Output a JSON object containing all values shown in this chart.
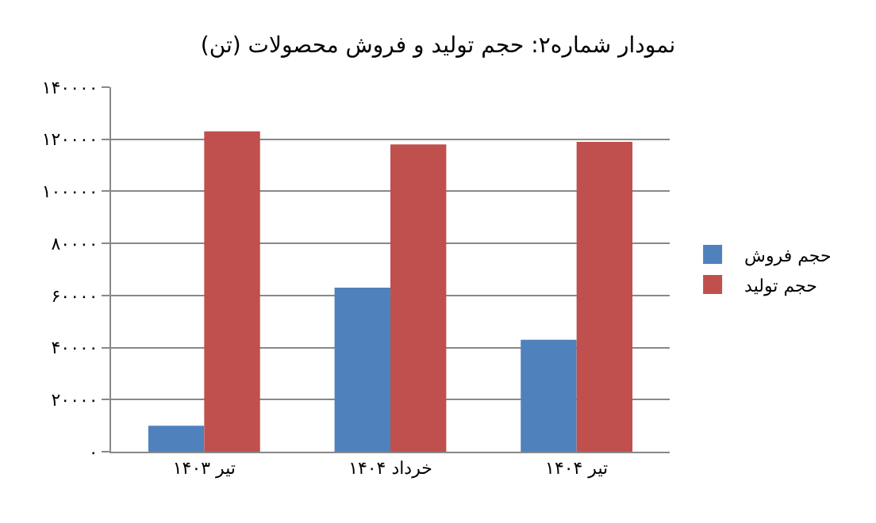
{
  "chart_data": {
    "type": "bar",
    "title": "نمودار شماره۲: حجم تولید و فروش محصولات (تن)",
    "categories": [
      "تیر ۱۴۰۳",
      "خرداد ۱۴۰۴",
      "تیر ۱۴۰۴"
    ],
    "series": [
      {
        "name": "حجم فروش",
        "color": "#4f81bd",
        "values": [
          10000,
          63000,
          43000
        ]
      },
      {
        "name": "حجم تولید",
        "color": "#c0504d",
        "values": [
          123000,
          118000,
          119000
        ]
      }
    ],
    "ylim": [
      0,
      140000
    ],
    "yticks": [
      {
        "value": 0,
        "label": "۰"
      },
      {
        "value": 20000,
        "label": "۲۰۰۰۰"
      },
      {
        "value": 40000,
        "label": "۴۰۰۰۰"
      },
      {
        "value": 60000,
        "label": "۶۰۰۰۰"
      },
      {
        "value": 80000,
        "label": "۸۰۰۰۰"
      },
      {
        "value": 100000,
        "label": "۱۰۰۰۰۰"
      },
      {
        "value": 120000,
        "label": "۱۲۰۰۰۰"
      },
      {
        "value": 140000,
        "label": "۱۴۰۰۰۰"
      }
    ],
    "grid": "y",
    "legend": "right"
  }
}
